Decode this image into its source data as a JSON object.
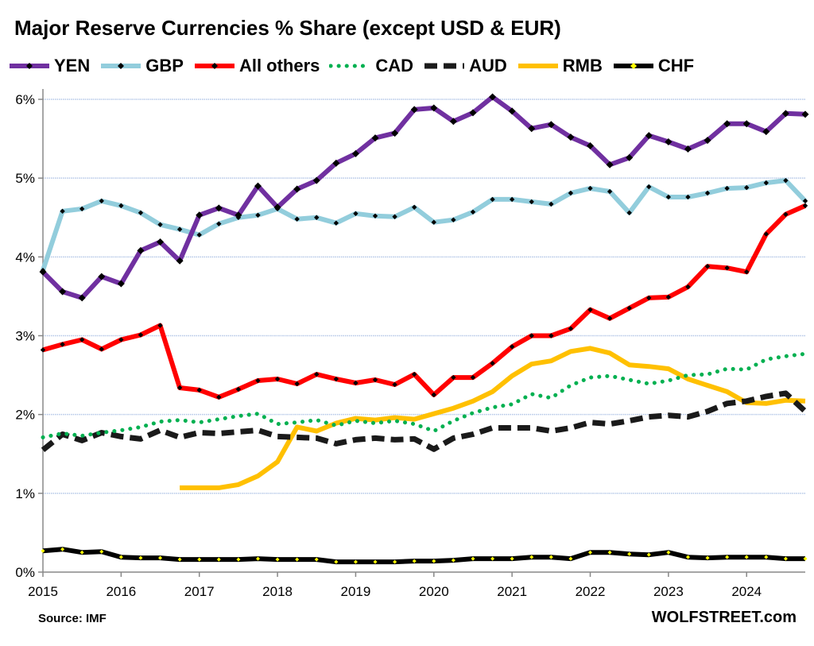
{
  "chart_data": {
    "type": "line",
    "title": "Major Reserve Currencies % Share (except USD & EUR)",
    "source": "Source: IMF",
    "brand": "WOLFSTREET.com",
    "x_tick_labels": [
      "2015",
      "2016",
      "2017",
      "2018",
      "2019",
      "2020",
      "2021",
      "2022",
      "2023",
      "2024"
    ],
    "x_frequency": "quarterly, Q1 2015 to Q4 2024",
    "y_ticks": [
      0,
      1,
      2,
      3,
      4,
      5,
      6
    ],
    "y_tick_labels": [
      "0%",
      "1%",
      "2%",
      "3%",
      "4%",
      "5%",
      "6%"
    ],
    "ylim": [
      0,
      6
    ],
    "grid": "horizontal",
    "legend_placement": "top",
    "series": [
      {
        "name": "YEN",
        "color": "#7030a0",
        "style": "solid-markers",
        "values": [
          3.81,
          3.56,
          3.48,
          3.75,
          3.66,
          4.08,
          4.19,
          3.95,
          4.53,
          4.62,
          4.53,
          4.9,
          4.63,
          4.86,
          4.97,
          5.19,
          5.31,
          5.51,
          5.57,
          5.87,
          5.89,
          5.72,
          5.83,
          6.03,
          5.85,
          5.63,
          5.68,
          5.52,
          5.41,
          5.17,
          5.26,
          5.54,
          5.46,
          5.37,
          5.48,
          5.69,
          5.69,
          5.59,
          5.82,
          5.81
        ]
      },
      {
        "name": "GBP",
        "color": "#92cddc",
        "style": "solid-markers",
        "values": [
          3.83,
          4.58,
          4.61,
          4.71,
          4.65,
          4.56,
          4.41,
          4.35,
          4.28,
          4.42,
          4.5,
          4.53,
          4.61,
          4.48,
          4.5,
          4.43,
          4.55,
          4.52,
          4.51,
          4.63,
          4.44,
          4.47,
          4.57,
          4.73,
          4.73,
          4.7,
          4.67,
          4.81,
          4.87,
          4.83,
          4.56,
          4.89,
          4.76,
          4.76,
          4.81,
          4.87,
          4.88,
          4.94,
          4.97,
          4.71
        ]
      },
      {
        "name": "All others",
        "color": "#ff0000",
        "style": "solid-markers",
        "values": [
          2.82,
          2.89,
          2.95,
          2.83,
          2.95,
          3.01,
          3.13,
          2.34,
          2.31,
          2.22,
          2.32,
          2.43,
          2.45,
          2.39,
          2.51,
          2.45,
          2.4,
          2.44,
          2.38,
          2.51,
          2.25,
          2.47,
          2.47,
          2.65,
          2.86,
          3.0,
          3.0,
          3.09,
          3.33,
          3.22,
          3.35,
          3.48,
          3.49,
          3.62,
          3.88,
          3.86,
          3.81,
          4.29,
          4.54,
          4.65
        ]
      },
      {
        "name": "CAD",
        "color": "#00b050",
        "style": "dotted",
        "values": [
          1.71,
          1.76,
          1.73,
          1.77,
          1.8,
          1.84,
          1.91,
          1.93,
          1.9,
          1.94,
          1.98,
          2.01,
          1.88,
          1.9,
          1.93,
          1.86,
          1.92,
          1.89,
          1.92,
          1.88,
          1.79,
          1.92,
          2.02,
          2.09,
          2.13,
          2.26,
          2.21,
          2.37,
          2.47,
          2.49,
          2.44,
          2.39,
          2.43,
          2.5,
          2.51,
          2.58,
          2.57,
          2.7,
          2.74,
          2.77
        ]
      },
      {
        "name": "AUD",
        "color": "#1a1a1a",
        "style": "dashed",
        "values": [
          1.55,
          1.75,
          1.67,
          1.77,
          1.72,
          1.69,
          1.8,
          1.71,
          1.77,
          1.76,
          1.78,
          1.8,
          1.72,
          1.71,
          1.7,
          1.63,
          1.68,
          1.7,
          1.68,
          1.69,
          1.56,
          1.7,
          1.75,
          1.83,
          1.83,
          1.83,
          1.79,
          1.83,
          1.9,
          1.88,
          1.92,
          1.97,
          1.99,
          1.97,
          2.04,
          2.14,
          2.17,
          2.23,
          2.27,
          2.04
        ]
      },
      {
        "name": "RMB",
        "color": "#ffc000",
        "style": "solid",
        "values": [
          null,
          null,
          null,
          null,
          null,
          null,
          null,
          1.07,
          1.07,
          1.07,
          1.11,
          1.22,
          1.4,
          1.84,
          1.79,
          1.89,
          1.95,
          1.93,
          1.96,
          1.94,
          2.01,
          2.08,
          2.17,
          2.29,
          2.49,
          2.64,
          2.68,
          2.8,
          2.84,
          2.78,
          2.63,
          2.61,
          2.58,
          2.45,
          2.37,
          2.29,
          2.15,
          2.14,
          2.18,
          2.17
        ]
      },
      {
        "name": "CHF",
        "color": "#000000",
        "style": "solid-yellow-markers",
        "values": [
          0.27,
          0.29,
          0.25,
          0.26,
          0.19,
          0.18,
          0.18,
          0.16,
          0.16,
          0.16,
          0.16,
          0.17,
          0.16,
          0.16,
          0.16,
          0.13,
          0.13,
          0.13,
          0.13,
          0.14,
          0.14,
          0.15,
          0.17,
          0.17,
          0.17,
          0.19,
          0.19,
          0.17,
          0.25,
          0.25,
          0.23,
          0.22,
          0.25,
          0.19,
          0.18,
          0.19,
          0.19,
          0.19,
          0.17,
          0.17
        ]
      }
    ]
  }
}
